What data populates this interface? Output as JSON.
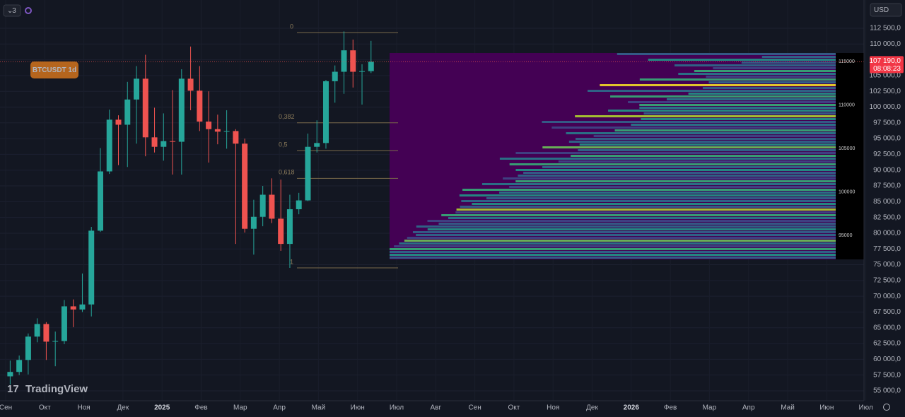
{
  "chart_data": {
    "type": "candlestick",
    "symbol_label": "BTCUSDT 1d",
    "interval_badge": "3",
    "currency": "USD",
    "ylim": [
      53430,
      116980
    ],
    "yticks": [
      {
        "value": 55000,
        "label": "55 000,0"
      },
      {
        "value": 57500,
        "label": "57 500,0"
      },
      {
        "value": 60000,
        "label": "60 000,0"
      },
      {
        "value": 62500,
        "label": "62 500,0"
      },
      {
        "value": 65000,
        "label": "65 000,0"
      },
      {
        "value": 67500,
        "label": "67 500,0"
      },
      {
        "value": 70000,
        "label": "70 000,0"
      },
      {
        "value": 72500,
        "label": "72 500,0"
      },
      {
        "value": 75000,
        "label": "75 000,0"
      },
      {
        "value": 77500,
        "label": "77 500,0"
      },
      {
        "value": 80000,
        "label": "80 000,0"
      },
      {
        "value": 82500,
        "label": "82 500,0"
      },
      {
        "value": 85000,
        "label": "85 000,0"
      },
      {
        "value": 87500,
        "label": "87 500,0"
      },
      {
        "value": 90000,
        "label": "90 000,0"
      },
      {
        "value": 92500,
        "label": "92 500,0"
      },
      {
        "value": 95000,
        "label": "95 000,0"
      },
      {
        "value": 97500,
        "label": "97 500,0"
      },
      {
        "value": 100000,
        "label": "100 000,0"
      },
      {
        "value": 102500,
        "label": "102 500,0"
      },
      {
        "value": 105000,
        "label": "105 000,0"
      },
      {
        "value": 107500,
        "label": "107 500,0"
      },
      {
        "value": 110000,
        "label": "110 000,0"
      },
      {
        "value": 112500,
        "label": "112 500,0"
      }
    ],
    "x_labels": [
      "Сен",
      "Окт",
      "Ноя",
      "Дек",
      "2025",
      "Фев",
      "Мар",
      "Апр",
      "Май",
      "Июн",
      "Июл",
      "Авг",
      "Сен",
      "Окт",
      "Ноя",
      "Дек",
      "2026",
      "Фев",
      "Мар",
      "Апр",
      "Май",
      "Июн",
      "Июл"
    ],
    "up_color": "#26a69a",
    "down_color": "#ef5350",
    "open": [
      57300,
      58000,
      59900,
      63600,
      65600,
      62800,
      62900,
      68400,
      67900,
      68700,
      80400,
      89800,
      98000,
      97200,
      101200,
      104500,
      95200,
      93700,
      94600,
      94500,
      104500,
      102600,
      97700,
      96500,
      96100,
      96200,
      94200,
      80700,
      82600,
      86100,
      82300,
      78300,
      83800,
      85200,
      93700,
      94300,
      104100,
      105600,
      109000,
      105600,
      105700
    ],
    "high": [
      59800,
      60600,
      64100,
      66500,
      65900,
      64400,
      69400,
      69500,
      73600,
      81000,
      93500,
      99600,
      98700,
      104000,
      106500,
      108300,
      99900,
      99000,
      102700,
      106000,
      109600,
      106500,
      102500,
      98800,
      99500,
      96500,
      95000,
      85300,
      87500,
      88700,
      88500,
      86100,
      86400,
      95800,
      97900,
      104300,
      106600,
      112000,
      110700,
      106800,
      110500
    ],
    "low": [
      56000,
      57500,
      57600,
      62700,
      59900,
      58900,
      62400,
      65100,
      67500,
      66800,
      80200,
      89400,
      90800,
      90500,
      94200,
      92200,
      92800,
      91500,
      89300,
      89300,
      99500,
      96200,
      91200,
      94100,
      93400,
      78300,
      80100,
      76600,
      81100,
      81600,
      77200,
      74500,
      83000,
      85100,
      92800,
      93400,
      100700,
      102100,
      103100,
      100400,
      105400
    ],
    "close": [
      58000,
      59900,
      63600,
      65600,
      62800,
      62900,
      68400,
      67900,
      68700,
      80400,
      89800,
      98000,
      97200,
      101200,
      104500,
      95200,
      93700,
      94600,
      94500,
      104500,
      102600,
      97700,
      96500,
      96100,
      96200,
      94200,
      80700,
      82600,
      86100,
      82300,
      78300,
      83800,
      85200,
      93700,
      94300,
      104100,
      105600,
      109000,
      105600,
      105700,
      107190
    ],
    "last_price": {
      "value": 107190,
      "label": "107 190,0"
    },
    "countdown": "08:08:23",
    "fib_levels": [
      {
        "level": 0,
        "price": 111800
      },
      {
        "level": {
          "value": 0.382,
          "label": "0,382"
        },
        "price": 97500
      },
      {
        "level": {
          "value": 0.5,
          "label": "0,5"
        },
        "price": 93100
      },
      {
        "level": {
          "value": 0.618,
          "label": "0,618"
        },
        "price": 88700
      },
      {
        "level": 1,
        "price": 74500
      }
    ],
    "heatmap_inset": {
      "ylim": [
        92240,
        115980
      ],
      "yticks": [
        115000,
        110000,
        105000,
        100000,
        95000
      ]
    },
    "brand": "TradingView"
  }
}
